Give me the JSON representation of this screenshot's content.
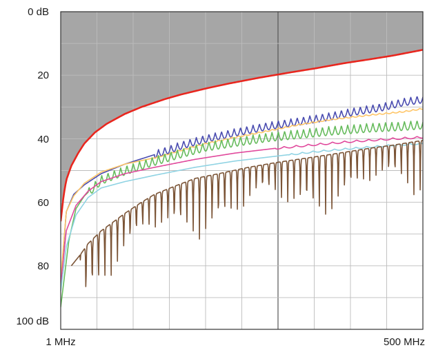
{
  "chart_data": {
    "type": "line",
    "title": "",
    "xlabel": "",
    "ylabel": "",
    "x_scale": "log",
    "x_unit": "MHz",
    "xlim": [
      1,
      500
    ],
    "ylim_top_to_bottom": [
      0,
      100
    ],
    "y_unit": "dB",
    "y_ticks": [
      {
        "value": 0,
        "label": "0 dB"
      },
      {
        "value": 20,
        "label": "20"
      },
      {
        "value": 40,
        "label": "40"
      },
      {
        "value": 60,
        "label": "60"
      },
      {
        "value": 80,
        "label": "80"
      },
      {
        "value": 100,
        "label": "100 dB"
      }
    ],
    "x_ticks": [
      {
        "value": 1,
        "label": "1 MHz"
      },
      {
        "value": 500,
        "label": "500 MHz"
      }
    ],
    "grid": true,
    "limit_region_color": "#a6a6a6",
    "limit_curve": {
      "color": "#e8261e",
      "x": [
        1,
        1.05,
        1.1,
        1.2,
        1.35,
        1.5,
        1.8,
        2.2,
        3,
        4,
        6,
        8,
        12,
        18,
        30,
        50,
        80,
        130,
        200,
        300,
        500
      ],
      "y": [
        66,
        58,
        53,
        48.5,
        44.5,
        41.5,
        38,
        35.3,
        32.2,
        30,
        27.5,
        26,
        24.2,
        22.6,
        20.8,
        19.2,
        17.8,
        16.2,
        15,
        13.8,
        12
      ]
    },
    "series": [
      {
        "color": "#4a4cb0",
        "x": [
          1,
          1.1,
          1.25,
          1.5,
          2,
          3,
          5,
          8,
          12,
          20,
          35,
          60,
          100,
          150,
          250,
          350,
          500
        ],
        "y": [
          86,
          63,
          57.5,
          54.5,
          51,
          48,
          45,
          42,
          40,
          38,
          36,
          34.5,
          33,
          31.5,
          30,
          28.5,
          27.5
        ],
        "ripple_amp": 2.4,
        "ripple_period": 0.047,
        "ripple_start": 5
      },
      {
        "color": "#ffc566",
        "x": [
          1,
          1.1,
          1.25,
          1.5,
          2,
          3,
          5,
          8,
          12,
          20,
          35,
          60,
          100,
          200,
          350,
          500
        ],
        "y": [
          84,
          63,
          58,
          54,
          50.5,
          48,
          46,
          43.5,
          41.5,
          39.5,
          37.5,
          35.5,
          34,
          32.5,
          31.5,
          30.5
        ],
        "ripple_amp": 0.4,
        "ripple_period": 0.05,
        "ripple_start": 5
      },
      {
        "color": "#66bb5c",
        "x": [
          1,
          1.15,
          1.3,
          1.5,
          2,
          3,
          5,
          8,
          12,
          20,
          35,
          60,
          100,
          200,
          350,
          500
        ],
        "y": [
          93,
          72,
          62,
          58,
          53,
          50,
          47,
          44.5,
          42.5,
          41,
          39.5,
          38.5,
          37.5,
          36.5,
          36,
          35.5
        ],
        "ripple_amp": 2.8,
        "ripple_period": 0.047,
        "ripple_start": 1.6
      },
      {
        "color": "#e0479b",
        "x": [
          1,
          1.1,
          1.3,
          1.6,
          2,
          3,
          5,
          10,
          20,
          40,
          80,
          150,
          300,
          500
        ],
        "y": [
          86,
          69,
          61,
          56.5,
          53.5,
          51,
          49,
          46.5,
          44.5,
          43,
          41.8,
          40.8,
          40,
          39.5
        ],
        "ripple_amp": 0.6,
        "ripple_period": 0.09,
        "ripple_start": 40
      },
      {
        "color": "#8fd3e3",
        "x": [
          1,
          1.1,
          1.3,
          1.6,
          2,
          3,
          5,
          10,
          20,
          40,
          80,
          150,
          300,
          500
        ],
        "y": [
          88,
          74,
          64,
          58.5,
          55.5,
          53.5,
          51.5,
          49,
          47,
          45.5,
          44,
          43,
          42,
          41.5
        ],
        "ripple_amp": 0.5,
        "ripple_period": 0.08,
        "ripple_start": 50
      },
      {
        "color": "#7b5436",
        "x": [
          1.2,
          1.4,
          1.6,
          2,
          2.5,
          3,
          4,
          5,
          7,
          10,
          15,
          25,
          40,
          70,
          120,
          200,
          300,
          500
        ],
        "y": [
          80,
          76.5,
          73,
          69,
          66,
          63.5,
          60,
          57.5,
          55,
          52.5,
          51,
          49,
          47.5,
          46,
          44.5,
          43,
          42,
          40.5
        ],
        "notch_depth": 20,
        "notch_period": 0.047,
        "notch_start": 1.4
      }
    ]
  }
}
